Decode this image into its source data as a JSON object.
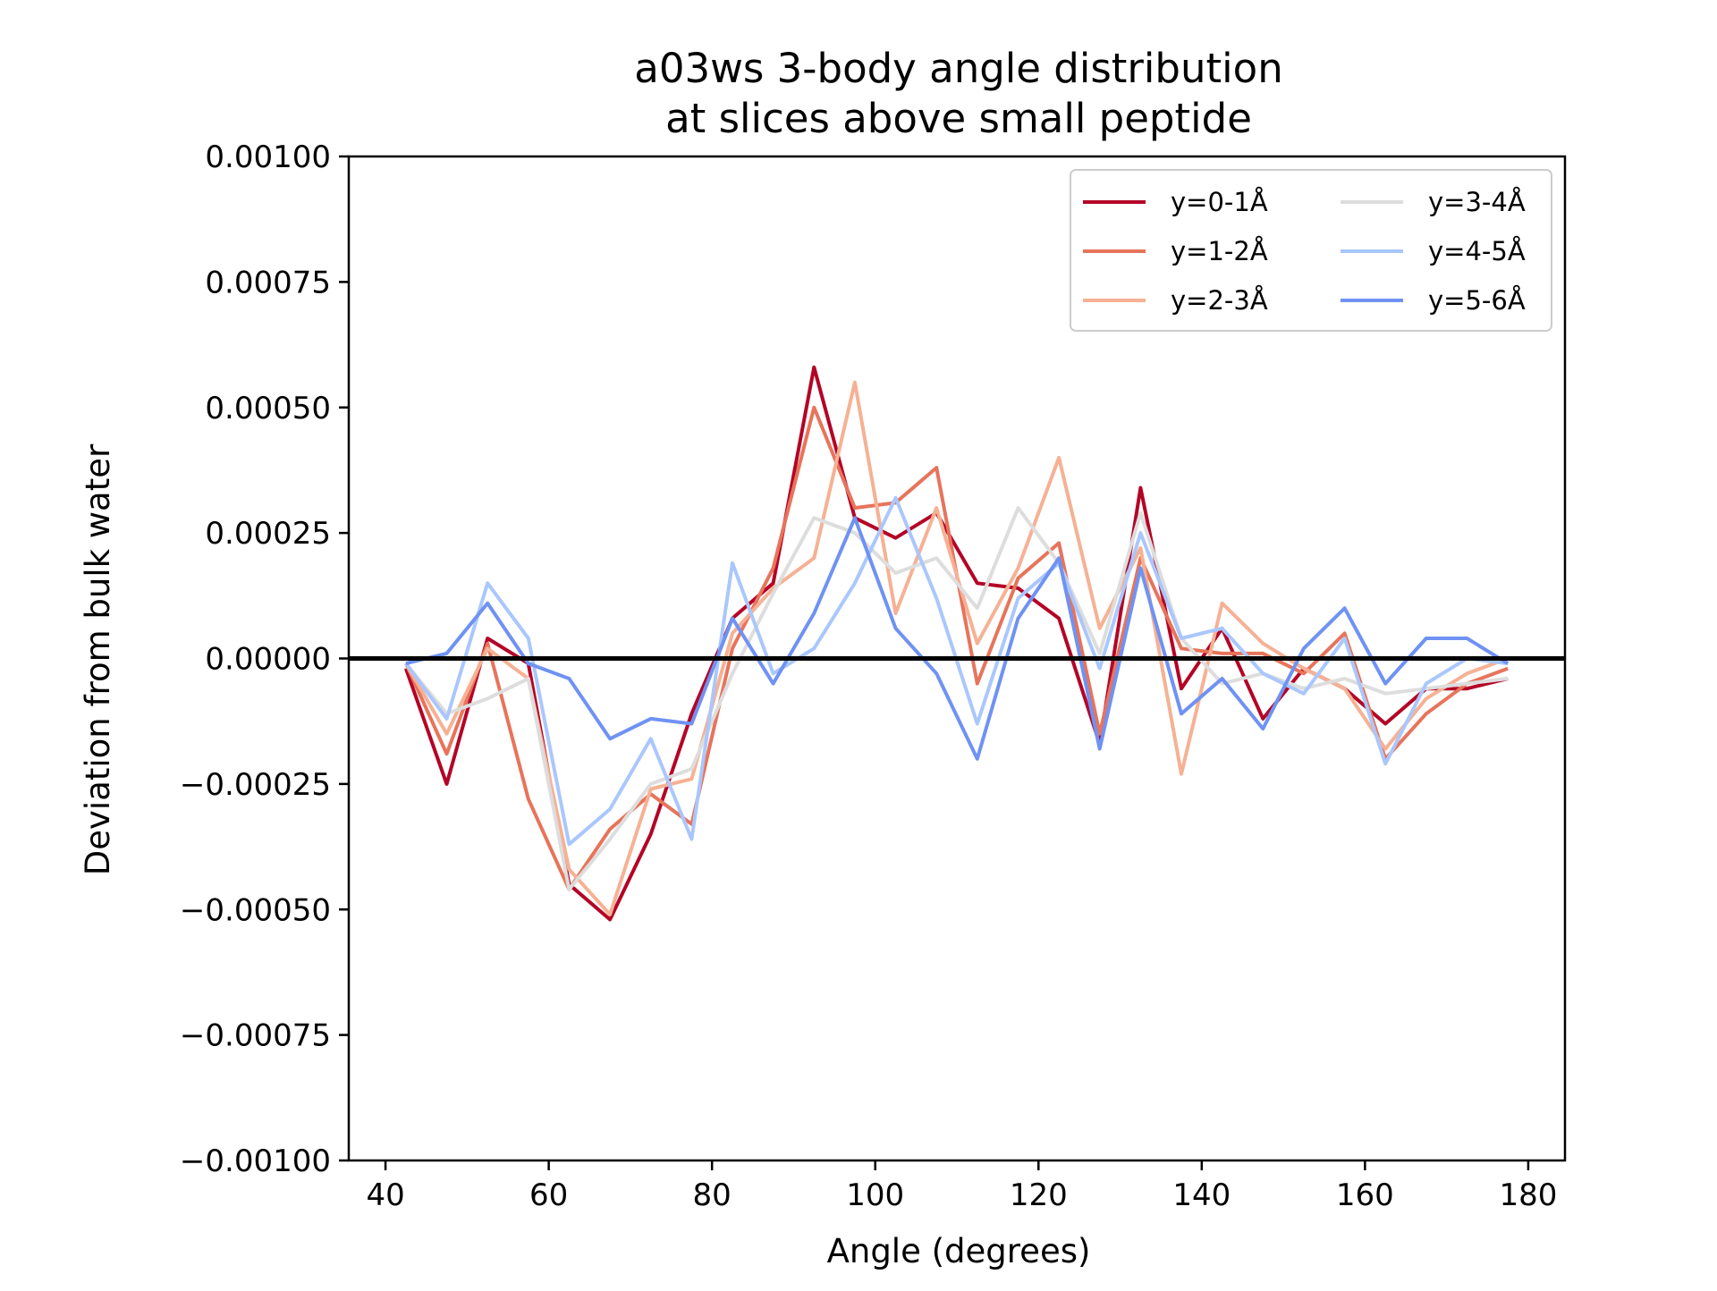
{
  "chart_data": {
    "type": "line",
    "title": "a03ws 3-body angle distribution",
    "subtitle": "at slices above small peptide",
    "xlabel": "Angle (degrees)",
    "ylabel": "Deviation from bulk water",
    "xlim": [
      35.5,
      184.5
    ],
    "ylim": [
      -0.001,
      0.001
    ],
    "xticks": [
      40,
      60,
      80,
      100,
      120,
      140,
      160,
      180
    ],
    "xtick_labels": [
      "40",
      "60",
      "80",
      "100",
      "120",
      "140",
      "160",
      "180"
    ],
    "yticks": [
      0.001,
      0.00075,
      0.0005,
      0.00025,
      0,
      -0.00025,
      -0.0005,
      -0.00075,
      -0.001
    ],
    "ytick_labels": [
      "0.00100",
      "0.00075",
      "0.00050",
      "0.00025",
      "0.00000",
      "−0.00025",
      "−0.00050",
      "−0.00075",
      "−0.00100"
    ],
    "reference_line": {
      "y": 0,
      "color": "#000000"
    },
    "grid": false,
    "legend": {
      "position": "top-right",
      "columns": 2
    },
    "x": [
      42.5,
      47.5,
      52.5,
      57.5,
      62.5,
      67.5,
      72.5,
      77.5,
      82.5,
      87.5,
      92.5,
      97.5,
      102.5,
      107.5,
      112.5,
      117.5,
      122.5,
      127.5,
      132.5,
      137.5,
      142.5,
      147.5,
      152.5,
      157.5,
      162.5,
      167.5,
      172.5,
      177.5
    ],
    "series": [
      {
        "name": "y=0-1Å",
        "color": "#b40426",
        "values": [
          -2e-05,
          -0.00025,
          4e-05,
          -1e-05,
          -0.00045,
          -0.00052,
          -0.00035,
          -0.00011,
          8e-05,
          0.00015,
          0.00058,
          0.00028,
          0.00024,
          0.00029,
          0.00015,
          0.00014,
          8e-05,
          -0.00017,
          0.00034,
          -6e-05,
          6e-05,
          -0.00012,
          -2e-05,
          -6e-05,
          -0.00013,
          -6e-05,
          -6e-05,
          -4e-05
        ]
      },
      {
        "name": "y=1-2Å",
        "color": "#e7745b",
        "values": [
          -1e-05,
          -0.00019,
          3e-05,
          -0.00028,
          -0.00046,
          -0.00034,
          -0.00027,
          -0.00033,
          2e-05,
          0.00018,
          0.0005,
          0.0003,
          0.00031,
          0.00038,
          -5e-05,
          0.00016,
          0.00023,
          -0.00015,
          0.0002,
          2e-05,
          1e-05,
          1e-05,
          -3e-05,
          5e-05,
          -0.0002,
          -0.00011,
          -5e-05,
          -2e-05
        ]
      },
      {
        "name": "y=2-3Å",
        "color": "#f6b194",
        "values": [
          -1e-05,
          -0.00015,
          2e-05,
          -4e-05,
          -0.00042,
          -0.00051,
          -0.00026,
          -0.00024,
          5e-05,
          0.00014,
          0.0002,
          0.00055,
          9e-05,
          0.0003,
          3e-05,
          0.00018,
          0.0004,
          6e-05,
          0.00022,
          -0.00023,
          0.00011,
          3e-05,
          -2e-05,
          -6e-05,
          -0.00018,
          -8e-05,
          -3e-05,
          0.0
        ]
      },
      {
        "name": "y=3-4Å",
        "color": "#dddddd",
        "values": [
          -1e-05,
          -0.00011,
          -8e-05,
          -4e-05,
          -0.00046,
          -0.00036,
          -0.00025,
          -0.00022,
          -3e-05,
          0.00013,
          0.00028,
          0.00025,
          0.00017,
          0.0002,
          0.0001,
          0.0003,
          0.00019,
          1e-05,
          0.00029,
          4e-05,
          -5e-05,
          -3e-05,
          -6e-05,
          -4e-05,
          -7e-05,
          -6e-05,
          -5e-05,
          -4e-05
        ]
      },
      {
        "name": "y=4-5Å",
        "color": "#aac7fd",
        "values": [
          -1e-05,
          -0.00012,
          0.00015,
          4e-05,
          -0.00037,
          -0.0003,
          -0.00016,
          -0.00036,
          0.00019,
          -3e-05,
          2e-05,
          0.00015,
          0.00032,
          0.00012,
          -0.00013,
          0.00012,
          0.00019,
          -2e-05,
          0.00025,
          4e-05,
          6e-05,
          -3e-05,
          -7e-05,
          4e-05,
          -0.00021,
          -5e-05,
          0.0,
          -1e-05
        ]
      },
      {
        "name": "y=5-6Å",
        "color": "#6f92f3",
        "values": [
          -1e-05,
          1e-05,
          0.00011,
          -1e-05,
          -4e-05,
          -0.00016,
          -0.00012,
          -0.00013,
          8e-05,
          -5e-05,
          9e-05,
          0.00028,
          6e-05,
          -3e-05,
          -0.0002,
          8e-05,
          0.0002,
          -0.00018,
          0.00018,
          -0.00011,
          -4e-05,
          -0.00014,
          2e-05,
          0.0001,
          -5e-05,
          4e-05,
          4e-05,
          -1e-05
        ]
      }
    ]
  }
}
